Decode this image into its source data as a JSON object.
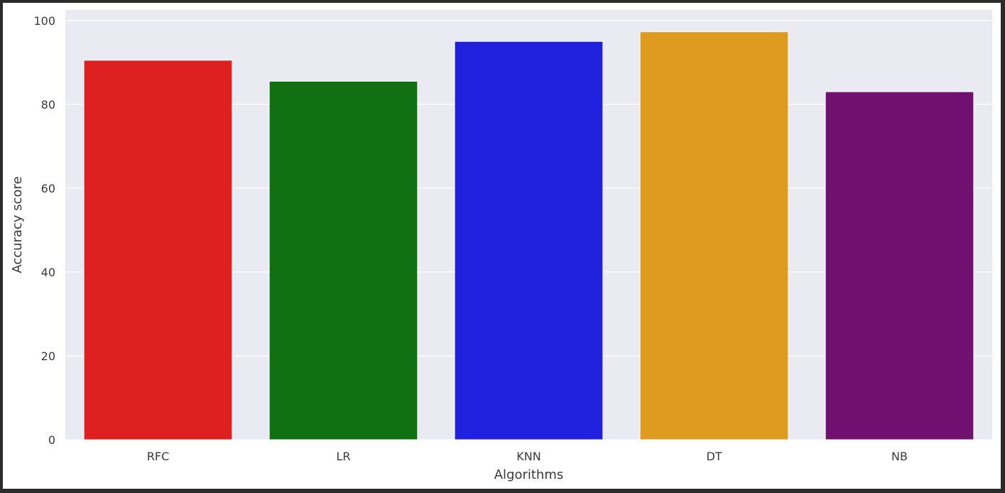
{
  "chart_data": {
    "type": "bar",
    "categories": [
      "RFC",
      "LR",
      "KNN",
      "DT",
      "NB"
    ],
    "values": [
      90.5,
      85.5,
      95.0,
      97.3,
      83.0
    ],
    "colors": [
      "#df2020",
      "#117011",
      "#2020df",
      "#df9b20",
      "#701170"
    ],
    "xlabel": "Algorithms",
    "ylabel": "Accuracy score",
    "ylim": [
      0,
      102.5
    ],
    "yticks": [
      0,
      20,
      40,
      60,
      80,
      100
    ],
    "grid": true,
    "background": "#eaeaf2"
  }
}
